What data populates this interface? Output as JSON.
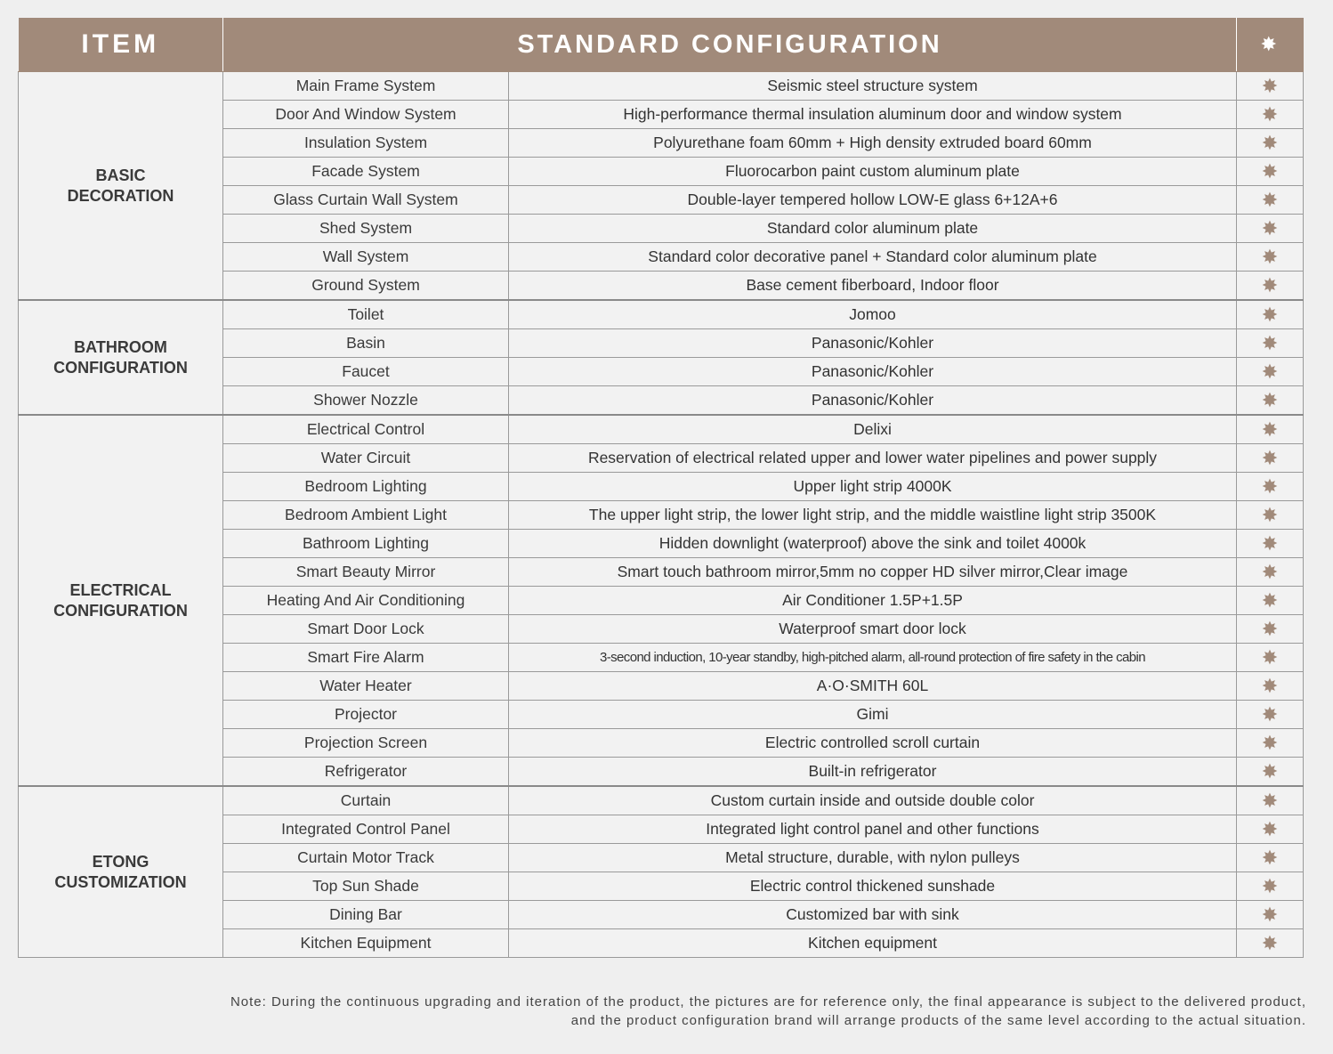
{
  "header": {
    "item": "ITEM",
    "config": "STANDARD CONFIGURATION",
    "mark": "✸"
  },
  "mark_symbol": "✸",
  "groups": [
    {
      "label_lines": [
        "BASIC",
        "DECORATION"
      ],
      "rows": [
        {
          "item": "Main Frame System",
          "value": "Seismic steel structure system"
        },
        {
          "item": "Door And Window System",
          "value": "High-performance thermal insulation aluminum door and window system"
        },
        {
          "item": "Insulation System",
          "value": "Polyurethane foam 60mm + High density extruded board 60mm"
        },
        {
          "item": "Facade System",
          "value": "Fluorocarbon paint custom aluminum plate"
        },
        {
          "item": "Glass Curtain Wall System",
          "value": "Double-layer tempered hollow LOW-E glass 6+12A+6"
        },
        {
          "item": "Shed System",
          "value": "Standard color aluminum plate"
        },
        {
          "item": "Wall System",
          "value": "Standard color decorative panel + Standard color aluminum plate"
        },
        {
          "item": "Ground System",
          "value": "Base cement fiberboard, Indoor  floor"
        }
      ]
    },
    {
      "label_lines": [
        "BATHROOM",
        "CONFIGURATION"
      ],
      "rows": [
        {
          "item": "Toilet",
          "value": "Jomoo"
        },
        {
          "item": "Basin",
          "value": "Panasonic/Kohler"
        },
        {
          "item": "Faucet",
          "value": "Panasonic/Kohler"
        },
        {
          "item": "Shower Nozzle",
          "value": "Panasonic/Kohler"
        }
      ]
    },
    {
      "label_lines": [
        "ELECTRICAL",
        "CONFIGURATION"
      ],
      "rows": [
        {
          "item": "Electrical Control",
          "value": "Delixi"
        },
        {
          "item": "Water Circuit",
          "value": "Reservation of electrical related upper and lower water pipelines and power supply"
        },
        {
          "item": "Bedroom Lighting",
          "value": "Upper light strip 4000K"
        },
        {
          "item": "Bedroom Ambient Light",
          "value": "The upper light strip, the lower light strip, and the middle waistline light strip 3500K"
        },
        {
          "item": "Bathroom Lighting",
          "value": "Hidden downlight (waterproof) above the sink and toilet 4000k"
        },
        {
          "item": "Smart Beauty Mirror",
          "value": "Smart touch bathroom mirror,5mm no copper HD silver mirror,Clear image"
        },
        {
          "item": "Heating And Air Conditioning",
          "value": "Air Conditioner 1.5P+1.5P"
        },
        {
          "item": "Smart Door Lock",
          "value": "Waterproof smart door lock"
        },
        {
          "item": "Smart Fire Alarm",
          "value": "3-second induction, 10-year standby, high-pitched alarm, all-round protection of fire safety in the cabin",
          "small": true
        },
        {
          "item": "Water Heater",
          "value": "A·O·SMITH    60L"
        },
        {
          "item": "Projector",
          "value": "Gimi"
        },
        {
          "item": "Projection Screen",
          "value": "Electric controlled scroll curtain"
        },
        {
          "item": "Refrigerator",
          "value": "Built-in refrigerator"
        }
      ]
    },
    {
      "label_lines": [
        "ETONG",
        "CUSTOMIZATION"
      ],
      "rows": [
        {
          "item": "Curtain",
          "value": "Custom curtain inside and outside double color"
        },
        {
          "item": "Integrated Control Panel",
          "value": "Integrated light control panel and other functions"
        },
        {
          "item": "Curtain Motor Track",
          "value": "Metal structure, durable, with nylon pulleys"
        },
        {
          "item": "Top Sun Shade",
          "value": "Electric control thickened sunshade"
        },
        {
          "item": "Dining Bar",
          "value": "Customized bar with sink"
        },
        {
          "item": "Kitchen Equipment",
          "value": "Kitchen equipment"
        }
      ]
    }
  ],
  "note": {
    "line1": "Note: During the continuous upgrading and iteration of the product, the pictures are for reference only, the final appearance is subject to the delivered product,",
    "line2": "and the product configuration brand will arrange products of the same level according to the actual situation."
  }
}
